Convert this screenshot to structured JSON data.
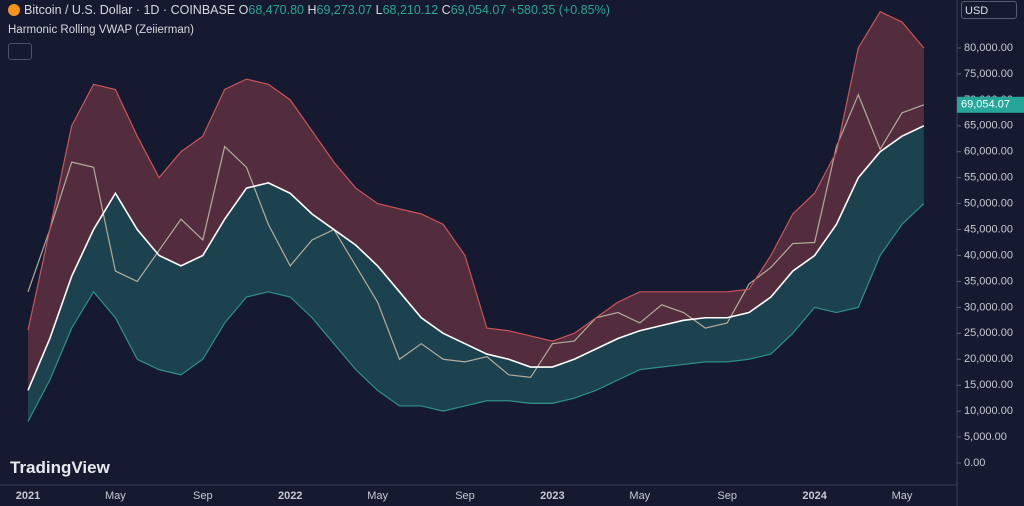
{
  "header": {
    "symbol": "Bitcoin / U.S. Dollar · 1D · COINBASE",
    "o_label": "O",
    "open": "68,470.80",
    "h_label": "H",
    "high": "69,273.07",
    "l_label": "L",
    "low": "68,210.12",
    "c_label": "C",
    "close": "69,054.07",
    "change": "+580.35 (+0.85%)",
    "indicator": "Harmonic Rolling VWAP (Zeiierman)",
    "currency": "USD",
    "brand": "TradingView"
  },
  "chart_data": {
    "type": "line",
    "categories": [
      "2021",
      null,
      null,
      null,
      "May",
      null,
      null,
      null,
      "Sep",
      null,
      null,
      null,
      "2022",
      null,
      null,
      null,
      "May",
      null,
      null,
      null,
      "Sep",
      null,
      null,
      null,
      "2023",
      null,
      null,
      null,
      "May",
      null,
      null,
      null,
      "Sep",
      null,
      null,
      null,
      "2024",
      null,
      null,
      null,
      "May",
      null
    ],
    "series": [
      {
        "color": "#b3ab9c",
        "values": [
          33000,
          45000,
          58000,
          57000,
          37000,
          35000,
          41000,
          47000,
          43000,
          61000,
          57000,
          46000,
          38000,
          43000,
          45000,
          38000,
          31000,
          20000,
          23000,
          20000,
          19500,
          20500,
          17000,
          16500,
          23000,
          23500,
          28000,
          29000,
          27000,
          30500,
          29000,
          26000,
          27000,
          34500,
          37700,
          42300,
          42500,
          61000,
          71000,
          60500,
          67500,
          69054.07
        ]
      },
      {
        "color": "#ffffff",
        "values": [
          14000,
          24000,
          36000,
          45000,
          52000,
          45000,
          40000,
          38000,
          40000,
          47000,
          53000,
          54000,
          52000,
          48000,
          45000,
          42000,
          38000,
          33000,
          28000,
          25000,
          23000,
          21000,
          20000,
          18500,
          18500,
          20000,
          22000,
          24000,
          25500,
          26500,
          27500,
          28000,
          28000,
          29000,
          32000,
          37000,
          40000,
          46000,
          55000,
          60000,
          63000,
          65000
        ]
      },
      {
        "color": "#c9545a",
        "values": [
          25600,
          45000,
          65000,
          73000,
          72000,
          63000,
          55000,
          60000,
          63000,
          72000,
          74000,
          73000,
          70000,
          64000,
          58000,
          53000,
          50000,
          49000,
          48000,
          46000,
          40000,
          26000,
          25500,
          24500,
          23500,
          25000,
          28000,
          31000,
          33000,
          33000,
          33000,
          33000,
          33000,
          33500,
          40000,
          48000,
          52000,
          60000,
          80000,
          87000,
          85000,
          80000
        ]
      },
      {
        "color": "#2f8f8a",
        "values": [
          8000,
          16000,
          26000,
          33000,
          28000,
          20000,
          18000,
          17000,
          20000,
          27000,
          32000,
          33000,
          32000,
          28000,
          23000,
          18000,
          14000,
          11000,
          11000,
          10000,
          11000,
          12000,
          12000,
          11500,
          11500,
          12500,
          14000,
          16000,
          18000,
          18500,
          19000,
          19500,
          19500,
          20000,
          21000,
          25000,
          30000,
          29000,
          30000,
          40000,
          46000,
          50000
        ]
      }
    ],
    "ylim": [
      -4240,
      89250
    ],
    "yticks": [
      {
        "value": 0,
        "label": "0.00"
      },
      {
        "value": 5000,
        "label": "5,000.00"
      },
      {
        "value": 10000,
        "label": "10,000.00"
      },
      {
        "value": 15000,
        "label": "15,000.00"
      },
      {
        "value": 20000,
        "label": "20,000.00"
      },
      {
        "value": 25000,
        "label": "25,000.00"
      },
      {
        "value": 30000,
        "label": "30,000.00"
      },
      {
        "value": 35000,
        "label": "35,000.00"
      },
      {
        "value": 40000,
        "label": "40,000.00"
      },
      {
        "value": 45000,
        "label": "45,000.00"
      },
      {
        "value": 50000,
        "label": "50,000.00"
      },
      {
        "value": 55000,
        "label": "55,000.00"
      },
      {
        "value": 60000,
        "label": "60,000.00"
      },
      {
        "value": 65000,
        "label": "65,000.00"
      },
      {
        "value": 70000,
        "label": "70,000.00"
      },
      {
        "value": 75000,
        "label": "75,000.00"
      },
      {
        "value": 80000,
        "label": "80,000.00"
      }
    ],
    "last_price_label": "69,054.07",
    "last_price_color": "#26a69a",
    "grid": false
  }
}
